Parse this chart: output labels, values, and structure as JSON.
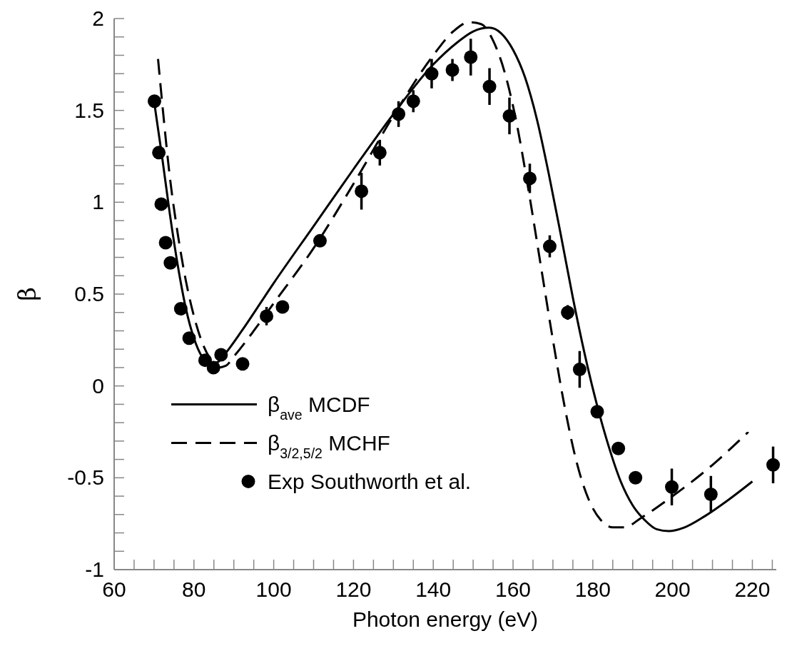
{
  "chart_data": {
    "type": "line",
    "xlabel": "Photon energy (eV)",
    "ylabel": "β",
    "xlim": [
      60,
      226
    ],
    "ylim": [
      -1,
      2
    ],
    "xticks": [
      60,
      {
        "value": 65,
        "label": null
      },
      {
        "value": 70,
        "label": null
      },
      {
        "value": 75,
        "label": null
      },
      80,
      {
        "value": 85,
        "label": null
      },
      {
        "value": 90,
        "label": null
      },
      {
        "value": 95,
        "label": null
      },
      100,
      {
        "value": 105,
        "label": null
      },
      {
        "value": 110,
        "label": null
      },
      {
        "value": 115,
        "label": null
      },
      120,
      {
        "value": 125,
        "label": null
      },
      {
        "value": 130,
        "label": null
      },
      {
        "value": 135,
        "label": null
      },
      140,
      {
        "value": 145,
        "label": null
      },
      {
        "value": 150,
        "label": null
      },
      {
        "value": 155,
        "label": null
      },
      160,
      {
        "value": 165,
        "label": null
      },
      {
        "value": 170,
        "label": null
      },
      {
        "value": 175,
        "label": null
      },
      180,
      {
        "value": 185,
        "label": null
      },
      {
        "value": 190,
        "label": null
      },
      {
        "value": 195,
        "label": null
      },
      200,
      {
        "value": 205,
        "label": null
      },
      {
        "value": 210,
        "label": null
      },
      {
        "value": 215,
        "label": null
      },
      220,
      {
        "value": 225,
        "label": null
      }
    ],
    "yticks": [
      -1,
      {
        "value": -0.9,
        "label": null
      },
      {
        "value": -0.8,
        "label": null
      },
      {
        "value": -0.7,
        "label": null
      },
      {
        "value": -0.6,
        "label": null
      },
      -0.5,
      {
        "value": -0.4,
        "label": null
      },
      {
        "value": -0.3,
        "label": null
      },
      {
        "value": -0.2,
        "label": null
      },
      {
        "value": -0.1,
        "label": null
      },
      0,
      {
        "value": 0.1,
        "label": null
      },
      {
        "value": 0.2,
        "label": null
      },
      {
        "value": 0.3,
        "label": null
      },
      {
        "value": 0.4,
        "label": null
      },
      0.5,
      {
        "value": 0.6,
        "label": null
      },
      {
        "value": 0.7,
        "label": null
      },
      {
        "value": 0.8,
        "label": null
      },
      {
        "value": 0.9,
        "label": null
      },
      1,
      {
        "value": 1.1,
        "label": null
      },
      {
        "value": 1.2,
        "label": null
      },
      {
        "value": 1.3,
        "label": null
      },
      {
        "value": 1.4,
        "label": null
      },
      1.5,
      {
        "value": 1.6,
        "label": null
      },
      {
        "value": 1.7,
        "label": null
      },
      {
        "value": 1.8,
        "label": null
      },
      {
        "value": 1.9,
        "label": null
      },
      2
    ],
    "grid": false,
    "legend": "bottom left",
    "series": [
      {
        "name": "β$_{ave}$ MCDF",
        "line_style": "solid",
        "marker": "none",
        "color": "#000000",
        "x": [
          70,
          72,
          74,
          76,
          78,
          80,
          82,
          84,
          86,
          88,
          92,
          100,
          110,
          120,
          130,
          140,
          146,
          150,
          154,
          157,
          160,
          163,
          166,
          169,
          172,
          175,
          178,
          181,
          184,
          187,
          190,
          193,
          196,
          199,
          203,
          208,
          214,
          220
        ],
        "values": [
          1.55,
          1.25,
          0.93,
          0.65,
          0.42,
          0.26,
          0.16,
          0.12,
          0.13,
          0.18,
          0.3,
          0.56,
          0.87,
          1.18,
          1.48,
          1.75,
          1.87,
          1.93,
          1.95,
          1.92,
          1.83,
          1.68,
          1.45,
          1.15,
          0.82,
          0.48,
          0.17,
          -0.1,
          -0.33,
          -0.52,
          -0.65,
          -0.73,
          -0.78,
          -0.79,
          -0.77,
          -0.71,
          -0.62,
          -0.52
        ]
      },
      {
        "name": "β$_{3/2,5/2}$  MCHF",
        "line_style": "dashed",
        "marker": "none",
        "color": "#000000",
        "x": [
          71,
          72,
          74,
          76,
          78,
          80,
          82,
          84,
          86,
          88,
          90,
          95,
          100,
          110,
          120,
          130,
          140,
          145,
          149,
          152,
          155,
          158,
          161,
          164,
          167,
          170,
          173,
          176,
          179,
          182,
          185,
          188,
          192,
          200,
          210,
          219
        ],
        "values": [
          1.78,
          1.55,
          1.13,
          0.82,
          0.57,
          0.38,
          0.24,
          0.15,
          0.1,
          0.11,
          0.16,
          0.3,
          0.45,
          0.75,
          1.1,
          1.47,
          1.8,
          1.93,
          1.98,
          1.97,
          1.88,
          1.7,
          1.42,
          1.05,
          0.65,
          0.25,
          -0.12,
          -0.42,
          -0.62,
          -0.73,
          -0.77,
          -0.77,
          -0.72,
          -0.6,
          -0.43,
          -0.25
        ]
      },
      {
        "name": "Exp Southworth et al.",
        "type": "scatter",
        "marker": "circle",
        "color": "#000000",
        "x": [
          70.1,
          71.2,
          71.8,
          72.9,
          74.1,
          76.7,
          78.8,
          82.8,
          84.9,
          86.8,
          92.2,
          98.2,
          102.2,
          111.6,
          122,
          126.6,
          131.3,
          135,
          139.6,
          144.8,
          149.4,
          154.1,
          159.1,
          164.2,
          169.2,
          173.7,
          176.7,
          181.1,
          186.4,
          190.7,
          199.8,
          209.6,
          225.2
        ],
        "values": [
          1.55,
          1.27,
          0.99,
          0.78,
          0.67,
          0.42,
          0.26,
          0.14,
          0.1,
          0.17,
          0.12,
          0.38,
          0.43,
          0.79,
          1.06,
          1.27,
          1.48,
          1.55,
          1.7,
          1.72,
          1.79,
          1.63,
          1.47,
          1.13,
          0.76,
          0.4,
          0.09,
          -0.14,
          -0.34,
          -0.5,
          -0.55,
          -0.59,
          -0.43
        ],
        "errors": [
          null,
          null,
          null,
          null,
          null,
          null,
          null,
          null,
          null,
          null,
          null,
          0.05,
          null,
          null,
          0.1,
          0.07,
          0.07,
          0.06,
          0.08,
          0.06,
          0.1,
          0.1,
          0.1,
          0.08,
          0.06,
          0.04,
          0.1,
          null,
          null,
          null,
          0.1,
          0.1,
          0.1
        ]
      }
    ]
  }
}
